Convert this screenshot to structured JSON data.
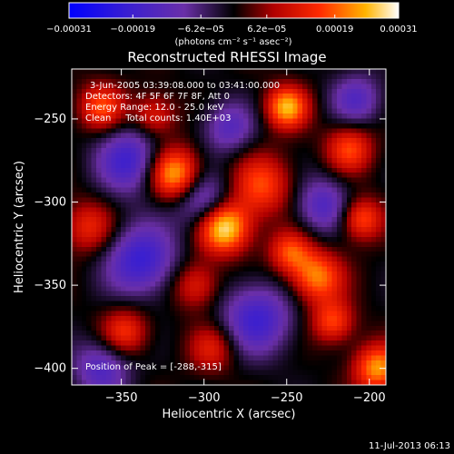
{
  "chart_data": {
    "type": "heatmap",
    "title": "Reconstructed RHESSI Image",
    "xlabel": "Heliocentric X (arcsec)",
    "ylabel": "Heliocentric Y (arcsec)",
    "xlim": [
      -380,
      -190
    ],
    "ylim": [
      -410,
      -220
    ],
    "x_ticks": [
      -350,
      -300,
      -250,
      -200
    ],
    "y_ticks": [
      -250,
      -300,
      -350,
      -400
    ],
    "x_tick_labels": [
      "−350",
      "−300",
      "−250",
      "−200"
    ],
    "y_tick_labels": [
      "−250",
      "−300",
      "−350",
      "−400"
    ],
    "colorbar": {
      "range": [
        -0.00031,
        0.00031
      ],
      "ticks": [
        -0.00031,
        -0.00019,
        -6.2e-05,
        6.2e-05,
        0.00019,
        0.00031
      ],
      "tick_labels": [
        "−0.00031",
        "−0.00019",
        "−6.2e−05",
        "6.2e−05",
        "0.00019",
        "0.00031"
      ],
      "units": "(photons cm⁻² s⁻¹ asec⁻²)"
    },
    "sources": [
      {
        "x": -288,
        "y": -315,
        "amp": 1.0,
        "w": 11
      },
      {
        "x": -318,
        "y": -283,
        "amp": 0.85,
        "w": 11
      },
      {
        "x": -250,
        "y": -243,
        "amp": 0.8,
        "w": 9
      },
      {
        "x": -362,
        "y": -243,
        "amp": 0.55,
        "w": 10
      },
      {
        "x": -265,
        "y": -290,
        "amp": 0.55,
        "w": 13
      },
      {
        "x": -212,
        "y": -268,
        "amp": 0.55,
        "w": 10
      },
      {
        "x": -205,
        "y": -310,
        "amp": 0.6,
        "w": 9
      },
      {
        "x": -232,
        "y": -345,
        "amp": 0.7,
        "w": 11
      },
      {
        "x": -248,
        "y": -330,
        "amp": 0.55,
        "w": 9
      },
      {
        "x": -222,
        "y": -372,
        "amp": 0.55,
        "w": 9
      },
      {
        "x": -195,
        "y": -400,
        "amp": 0.75,
        "w": 10
      },
      {
        "x": -305,
        "y": -350,
        "amp": 0.45,
        "w": 10
      },
      {
        "x": -370,
        "y": -315,
        "amp": 0.45,
        "w": 11
      },
      {
        "x": -348,
        "y": -378,
        "amp": 0.5,
        "w": 10
      },
      {
        "x": -330,
        "y": -248,
        "amp": 0.45,
        "w": 9
      },
      {
        "x": -295,
        "y": -388,
        "amp": 0.4,
        "w": 10
      },
      {
        "x": -345,
        "y": -275,
        "amp": -0.6,
        "w": 14
      },
      {
        "x": -300,
        "y": -300,
        "amp": -0.55,
        "w": 12
      },
      {
        "x": -338,
        "y": -335,
        "amp": -0.65,
        "w": 15
      },
      {
        "x": -228,
        "y": -302,
        "amp": -0.5,
        "w": 12
      },
      {
        "x": -268,
        "y": -370,
        "amp": -0.6,
        "w": 15
      },
      {
        "x": -362,
        "y": -400,
        "amp": -0.5,
        "w": 12
      },
      {
        "x": -208,
        "y": -238,
        "amp": -0.45,
        "w": 11
      },
      {
        "x": -285,
        "y": -255,
        "amp": -0.45,
        "w": 11
      }
    ],
    "annotations": {
      "time": "3-Jun-2005 03:39:08.000 to 03:41:00.000",
      "detectors": "Detectors: 4F 5F 6F 7F 8F, Att 0",
      "energy": "Energy Range: 12.0 - 25.0 keV",
      "clean": "Clean     Total counts: 1.40E+03",
      "peak": "Position of Peak = [-288,-315]"
    },
    "footer": "11-Jul-2013 06:13"
  }
}
